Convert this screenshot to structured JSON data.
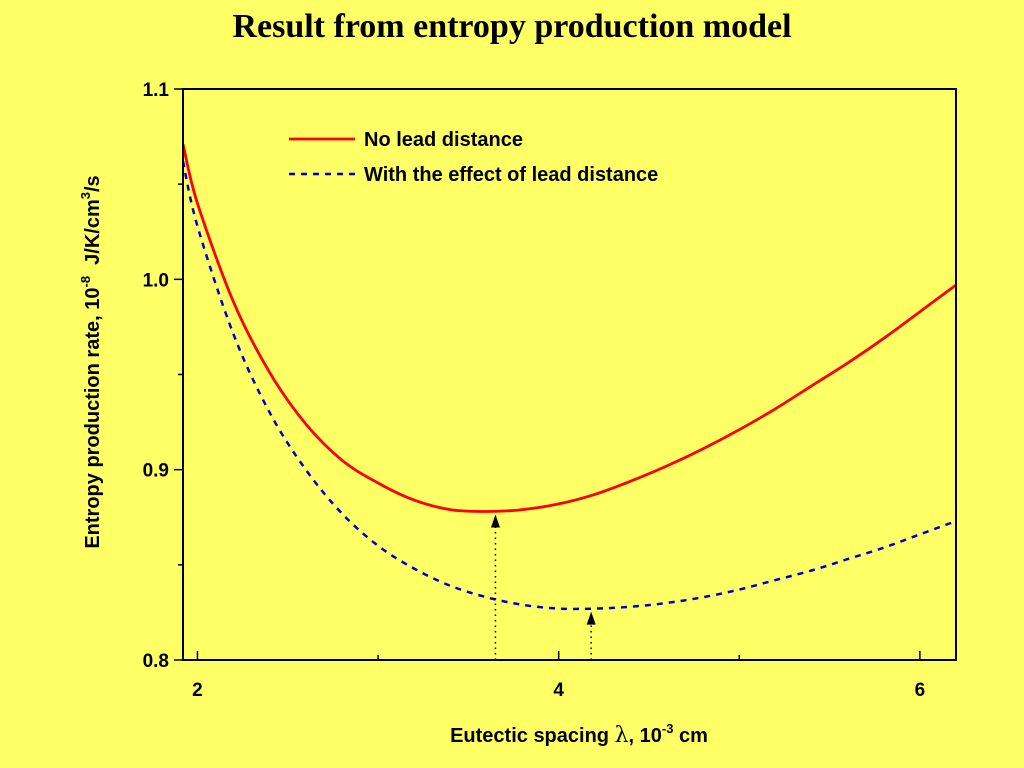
{
  "chart_data": {
    "type": "line",
    "title": "Result from entropy production model",
    "xlabel": {
      "before": "Eutectic spacing ",
      "symbol": "λ",
      "middle": ", 10",
      "exp": "-3",
      "after": " cm"
    },
    "ylabel": {
      "before": "Entropy production rate, 10",
      "exp1": "-8",
      "middle": "  J/K/cm",
      "exp2": "3",
      "after": "/s"
    },
    "xlim": [
      1.92,
      6.2
    ],
    "ylim": [
      0.8,
      1.1
    ],
    "x_ticks": [
      2,
      4,
      6
    ],
    "x_tick_labels": [
      "2",
      "4",
      "6"
    ],
    "y_ticks": [
      0.8,
      0.9,
      1.0,
      1.1
    ],
    "y_tick_labels": [
      "0.8",
      "0.9",
      "1.0",
      "1.1"
    ],
    "grid": false,
    "legend_position": "top-center",
    "series": [
      {
        "name": "No lead distance",
        "color": "#ff0000",
        "dash": "solid",
        "x": [
          1.92,
          2.0,
          2.2,
          2.4,
          2.6,
          2.8,
          3.0,
          3.2,
          3.4,
          3.6,
          3.8,
          4.0,
          4.2,
          4.4,
          4.6,
          4.8,
          5.0,
          5.2,
          5.4,
          5.6,
          5.8,
          6.0,
          6.2
        ],
        "y": [
          1.071,
          1.04,
          0.988,
          0.951,
          0.924,
          0.905,
          0.893,
          0.884,
          0.879,
          0.878,
          0.879,
          0.882,
          0.887,
          0.894,
          0.902,
          0.911,
          0.921,
          0.932,
          0.944,
          0.956,
          0.969,
          0.983,
          0.997
        ]
      },
      {
        "name": "With the effect of lead distance",
        "color": "#0000cc",
        "dash": "dashed",
        "x": [
          1.92,
          2.0,
          2.2,
          2.4,
          2.6,
          2.8,
          3.0,
          3.2,
          3.4,
          3.6,
          3.8,
          4.0,
          4.2,
          4.4,
          4.6,
          4.8,
          5.0,
          5.2,
          5.4,
          5.6,
          5.8,
          6.0,
          6.2
        ],
        "y": [
          1.062,
          1.028,
          0.971,
          0.93,
          0.9,
          0.877,
          0.86,
          0.848,
          0.839,
          0.833,
          0.829,
          0.827,
          0.827,
          0.828,
          0.83,
          0.833,
          0.837,
          0.842,
          0.847,
          0.853,
          0.859,
          0.866,
          0.873
        ]
      }
    ],
    "annotations": [
      {
        "type": "minimum-arrow",
        "series": "No lead distance",
        "x": 3.65,
        "y": 0.878,
        "color": "#000000"
      },
      {
        "type": "minimum-arrow",
        "series": "With the effect of lead distance",
        "x": 4.18,
        "y": 0.827,
        "color": "#000000"
      }
    ]
  }
}
